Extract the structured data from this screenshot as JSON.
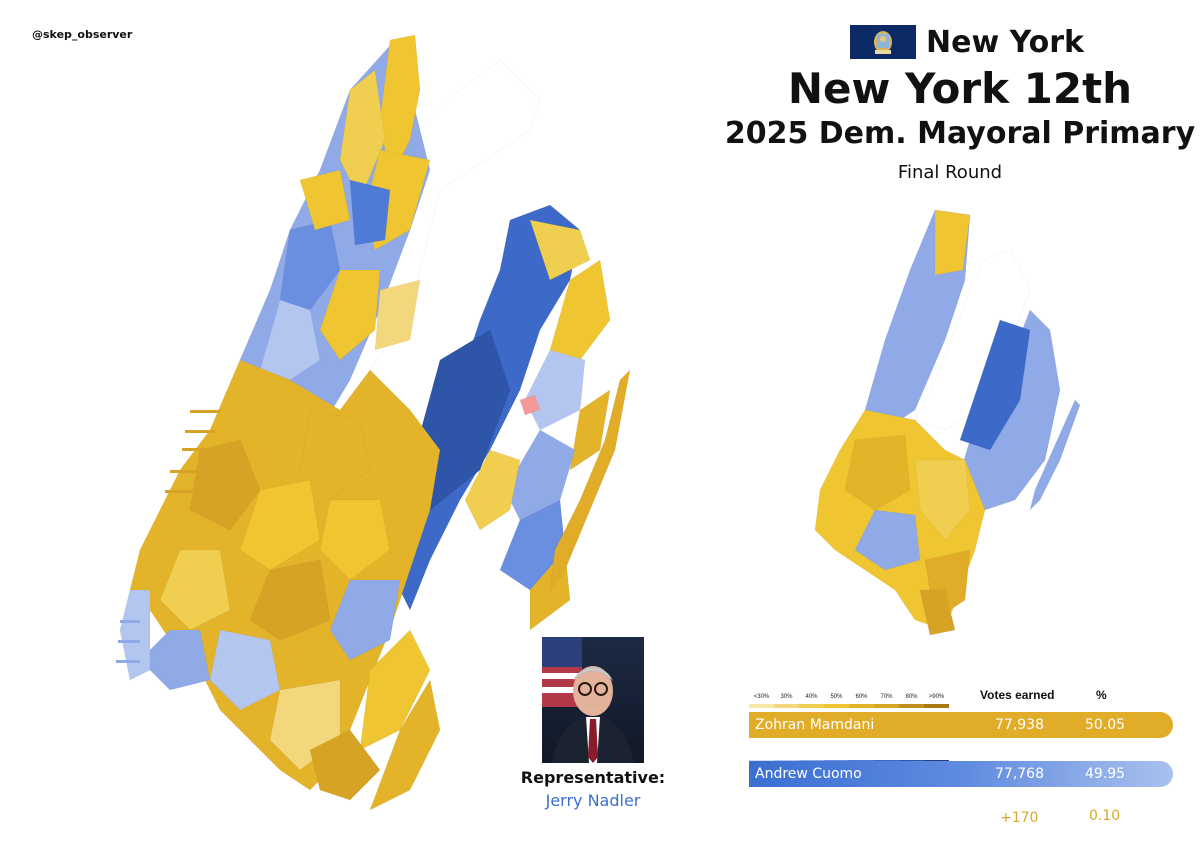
{
  "credit": "@skep_observer",
  "header": {
    "state": "New York",
    "district": "New York 12th",
    "race": "2025 Dem. Mayoral Primary",
    "round": "Final Round"
  },
  "representative": {
    "label": "Representative:",
    "name": "Jerry Nadler"
  },
  "legend": {
    "bins": [
      "<30%",
      "30%",
      "40%",
      "50%",
      "60%",
      "70%",
      "80%",
      ">90%"
    ],
    "mamdani_colors": [
      "#f7e6a6",
      "#f3d77c",
      "#f0ce4f",
      "#efc531",
      "#e3b32a",
      "#d6a325",
      "#c28e1e",
      "#a97a14"
    ],
    "cuomo_colors": [
      "#d3defa",
      "#b2c6f0",
      "#8faae7",
      "#6b8fe0",
      "#4f7ad6",
      "#3d69c8",
      "#2e55a8",
      "#243f80"
    ]
  },
  "results": {
    "votes_header": "Votes earned",
    "pct_header": "%",
    "candidates": [
      {
        "name": "Zohran Mamdani",
        "votes": "77,938",
        "pct": "50.05",
        "color": "#e1ac27"
      },
      {
        "name": "Andrew Cuomo",
        "votes": "77,768",
        "pct": "49.95",
        "color": "#3a6fd1"
      }
    ],
    "margin_votes": "+170",
    "margin_pct": "0.10"
  }
}
